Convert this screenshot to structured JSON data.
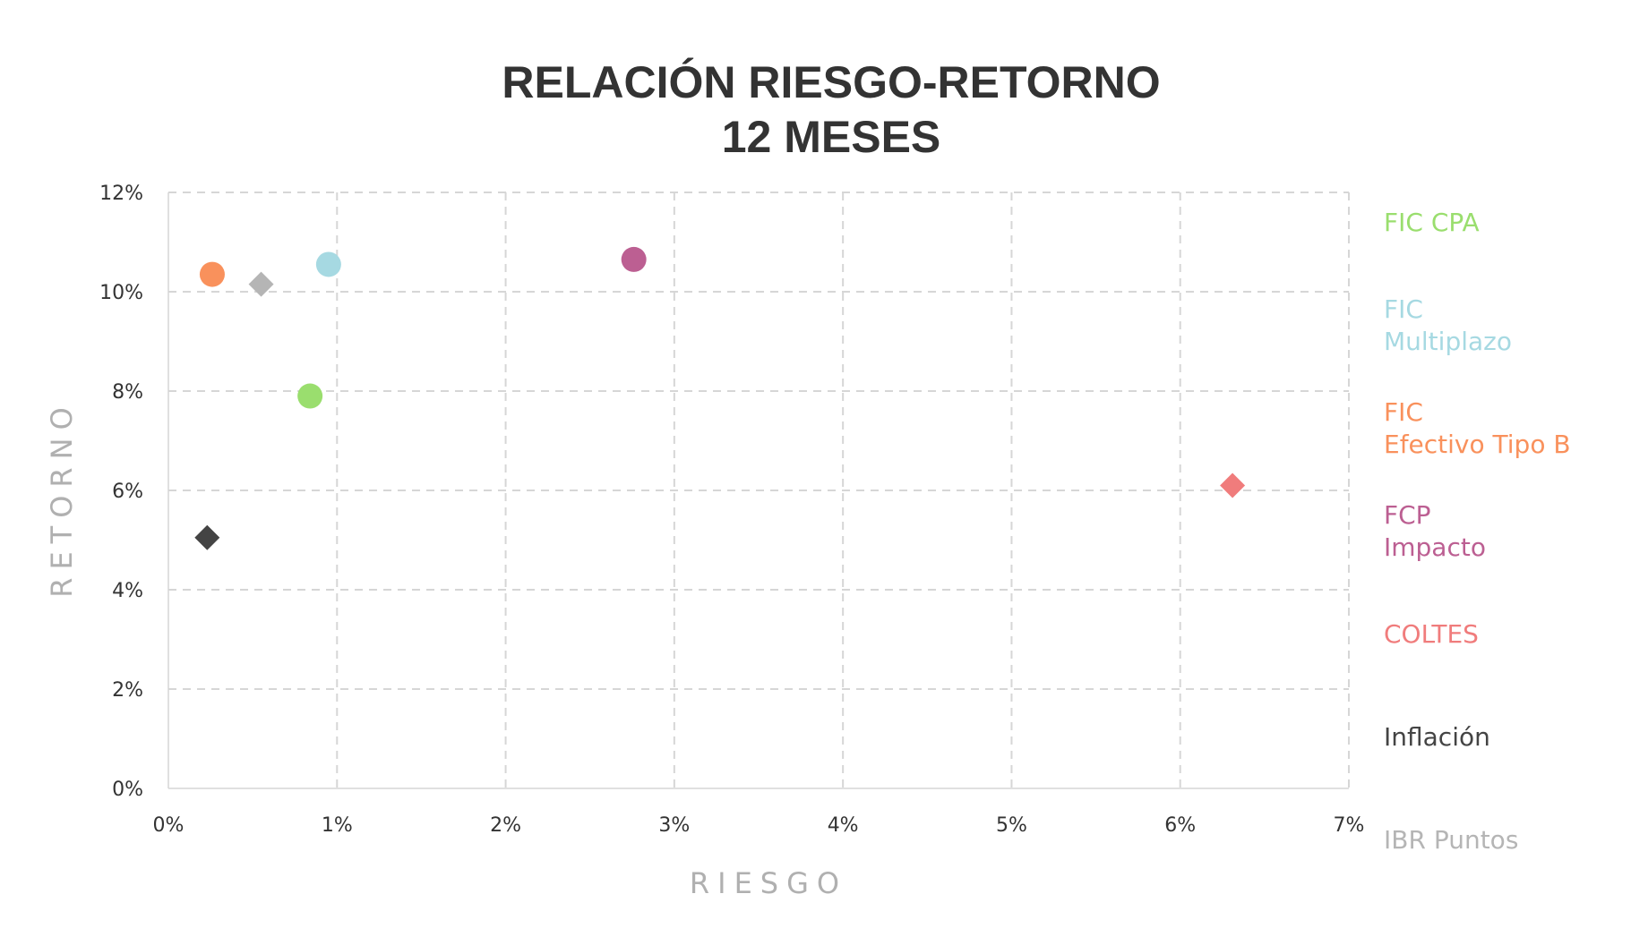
{
  "chart_data": {
    "type": "scatter",
    "title": [
      "RELACIÓN RIESGO-RETORNO",
      "12 MESES"
    ],
    "xlabel": "RIESGO",
    "ylabel": "RETORNO",
    "xlim": [
      0,
      7
    ],
    "ylim": [
      0,
      12
    ],
    "x_ticks": [
      "0%",
      "1%",
      "2%",
      "3%",
      "4%",
      "5%",
      "6%",
      "7%"
    ],
    "y_ticks": [
      "0%",
      "2%",
      "4%",
      "6%",
      "8%",
      "10%",
      "12%"
    ],
    "grid": true,
    "legend_position": "right",
    "series": [
      {
        "name": "FIC CPA",
        "legend_lines": [
          "FIC CPA"
        ],
        "color": "#9ade6e",
        "marker": "circle",
        "x": 0.84,
        "y": 7.9
      },
      {
        "name": "FIC Multiplazo",
        "legend_lines": [
          "FIC",
          "Multiplazo"
        ],
        "color": "#a6d9e2",
        "marker": "circle",
        "x": 0.95,
        "y": 10.55
      },
      {
        "name": "FIC Efectivo Tipo B",
        "legend_lines": [
          "FIC",
          "Efectivo Tipo B"
        ],
        "color": "#f9915c",
        "marker": "circle",
        "x": 0.26,
        "y": 10.35
      },
      {
        "name": "FCP Impacto",
        "legend_lines": [
          "FCP",
          "Impacto"
        ],
        "color": "#bc5f92",
        "marker": "circle",
        "x": 2.76,
        "y": 10.65
      },
      {
        "name": "COLTES",
        "legend_lines": [
          "COLTES"
        ],
        "color": "#f07c7c",
        "marker": "diamond",
        "x": 6.31,
        "y": 6.1
      },
      {
        "name": "Inflación",
        "legend_lines": [
          "Inflación"
        ],
        "color": "#444444",
        "marker": "diamond",
        "x": 0.23,
        "y": 5.05
      },
      {
        "name": "IBR Puntos",
        "legend_lines": [
          "IBR Puntos"
        ],
        "color": "#b5b5b5",
        "marker": "diamond",
        "x": 0.55,
        "y": 10.15
      }
    ]
  }
}
